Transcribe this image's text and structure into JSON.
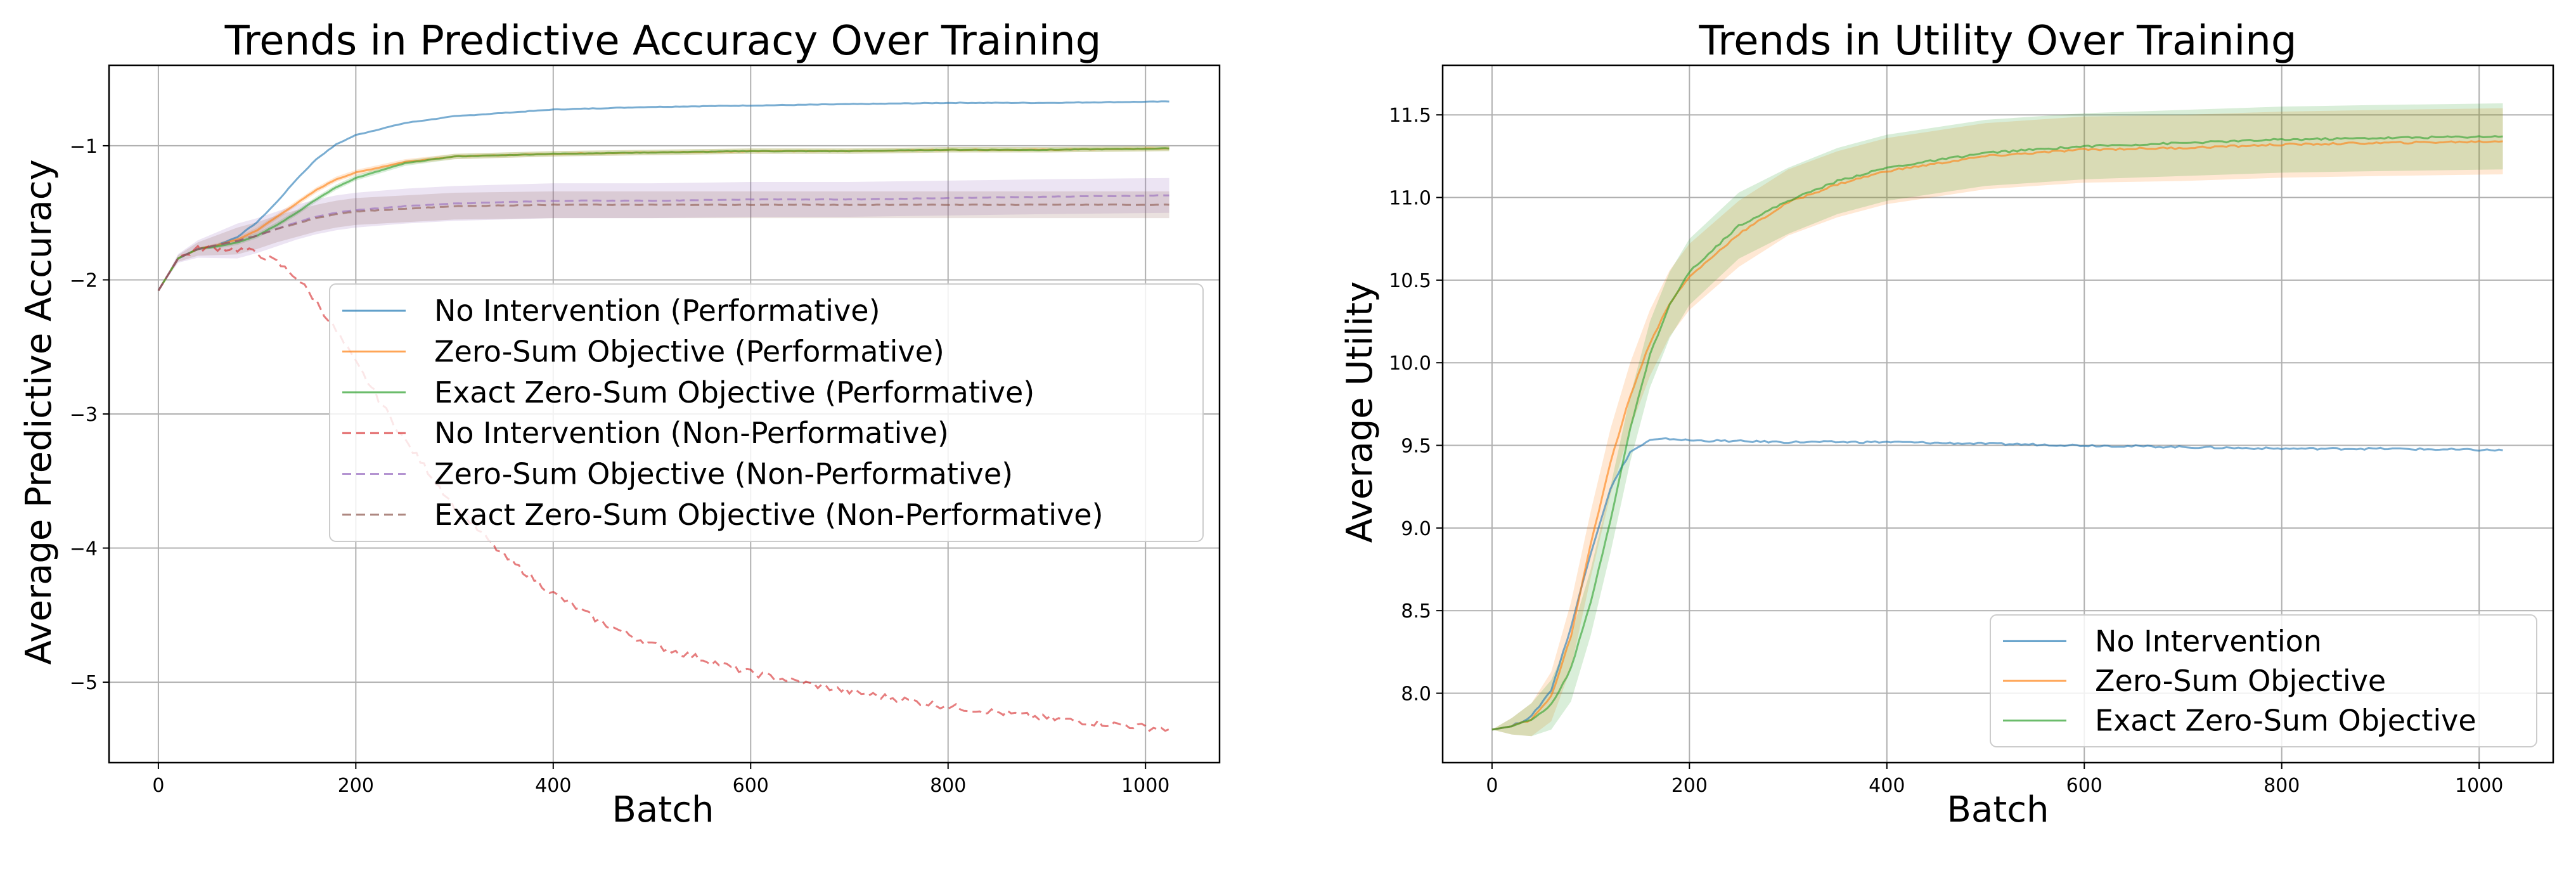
{
  "chart_data": [
    {
      "type": "line",
      "title": "Trends in Predictive Accuracy Over Training",
      "xlabel": "Batch",
      "ylabel": "Average Predictive Accuracy",
      "xlim": [
        -50,
        1075
      ],
      "ylim": [
        -5.6,
        -0.4
      ],
      "xticks": [
        0,
        200,
        400,
        600,
        800,
        1000
      ],
      "yticks": [
        -5,
        -4,
        -3,
        -2,
        -1
      ],
      "ytick_labels": [
        "−5",
        "−4",
        "−3",
        "−2",
        "−1"
      ],
      "grid": true,
      "legend_position": "center-right",
      "series": [
        {
          "name": "No Intervention (Performative)",
          "color": "#1f77b4",
          "style": "solid",
          "x": [
            0,
            20,
            40,
            60,
            80,
            100,
            120,
            140,
            160,
            180,
            200,
            250,
            300,
            400,
            500,
            600,
            700,
            800,
            900,
            1024
          ],
          "y": [
            -2.08,
            -1.84,
            -1.77,
            -1.74,
            -1.68,
            -1.57,
            -1.42,
            -1.25,
            -1.1,
            -0.99,
            -0.92,
            -0.83,
            -0.78,
            -0.73,
            -0.71,
            -0.7,
            -0.69,
            -0.68,
            -0.68,
            -0.67
          ],
          "band": null
        },
        {
          "name": "Zero-Sum Objective (Performative)",
          "color": "#ff7f0e",
          "style": "solid",
          "x": [
            0,
            20,
            40,
            60,
            80,
            100,
            120,
            140,
            160,
            180,
            200,
            250,
            300,
            400,
            500,
            600,
            700,
            800,
            900,
            1024
          ],
          "y": [
            -2.08,
            -1.84,
            -1.77,
            -1.74,
            -1.7,
            -1.63,
            -1.53,
            -1.43,
            -1.33,
            -1.25,
            -1.2,
            -1.12,
            -1.08,
            -1.06,
            -1.05,
            -1.04,
            -1.04,
            -1.03,
            -1.03,
            -1.02
          ],
          "band": 0.02
        },
        {
          "name": "Exact Zero-Sum Objective (Performative)",
          "color": "#2ca02c",
          "style": "solid",
          "x": [
            0,
            20,
            40,
            60,
            80,
            100,
            120,
            140,
            160,
            180,
            200,
            250,
            300,
            400,
            500,
            600,
            700,
            800,
            900,
            1024
          ],
          "y": [
            -2.08,
            -1.84,
            -1.77,
            -1.75,
            -1.72,
            -1.67,
            -1.59,
            -1.5,
            -1.4,
            -1.31,
            -1.24,
            -1.13,
            -1.08,
            -1.06,
            -1.05,
            -1.04,
            -1.04,
            -1.03,
            -1.03,
            -1.02
          ],
          "band": 0.02
        },
        {
          "name": "No Intervention (Non-Performative)",
          "color": "#d62728",
          "style": "dashed",
          "x": [
            0,
            20,
            40,
            60,
            80,
            100,
            120,
            140,
            160,
            180,
            200,
            250,
            300,
            350,
            400,
            450,
            500,
            600,
            700,
            800,
            900,
            1024
          ],
          "y": [
            -2.08,
            -1.84,
            -1.77,
            -1.76,
            -1.77,
            -1.8,
            -1.87,
            -1.98,
            -2.16,
            -2.38,
            -2.62,
            -3.2,
            -3.69,
            -4.06,
            -4.34,
            -4.56,
            -4.72,
            -4.93,
            -5.07,
            -5.18,
            -5.27,
            -5.35
          ],
          "band": null
        },
        {
          "name": "Zero-Sum Objective (Non-Performative)",
          "color": "#9467bd",
          "style": "dashed",
          "x": [
            0,
            20,
            40,
            60,
            80,
            100,
            120,
            140,
            160,
            180,
            200,
            250,
            300,
            400,
            500,
            600,
            700,
            800,
            900,
            1024
          ],
          "y": [
            -2.08,
            -1.84,
            -1.77,
            -1.74,
            -1.71,
            -1.67,
            -1.62,
            -1.57,
            -1.53,
            -1.5,
            -1.48,
            -1.45,
            -1.43,
            -1.41,
            -1.41,
            -1.4,
            -1.4,
            -1.39,
            -1.38,
            -1.37
          ],
          "band": 0.13
        },
        {
          "name": "Exact Zero-Sum Objective (Non-Performative)",
          "color": "#8c564b",
          "style": "dashed",
          "x": [
            0,
            20,
            40,
            60,
            80,
            100,
            120,
            140,
            160,
            180,
            200,
            250,
            300,
            400,
            500,
            600,
            700,
            800,
            900,
            1024
          ],
          "y": [
            -2.08,
            -1.84,
            -1.77,
            -1.74,
            -1.71,
            -1.67,
            -1.62,
            -1.58,
            -1.54,
            -1.51,
            -1.49,
            -1.47,
            -1.45,
            -1.44,
            -1.44,
            -1.44,
            -1.44,
            -1.44,
            -1.44,
            -1.44
          ],
          "band": 0.1
        }
      ]
    },
    {
      "type": "line",
      "title": "Trends in Utility Over Training",
      "xlabel": "Batch",
      "ylabel": "Average Utility",
      "xlim": [
        -50,
        1075
      ],
      "ylim": [
        7.58,
        11.8
      ],
      "xticks": [
        0,
        200,
        400,
        600,
        800,
        1000
      ],
      "yticks": [
        8.0,
        8.5,
        9.0,
        9.5,
        10.0,
        10.5,
        11.0,
        11.5
      ],
      "ytick_labels": [
        "8.0",
        "8.5",
        "9.0",
        "9.5",
        "10.0",
        "10.5",
        "11.0",
        "11.5"
      ],
      "grid": true,
      "legend_position": "lower-right",
      "series": [
        {
          "name": "No Intervention",
          "color": "#1f77b4",
          "style": "solid",
          "x": [
            0,
            20,
            40,
            60,
            80,
            100,
            120,
            140,
            160,
            180,
            200,
            300,
            400,
            500,
            600,
            700,
            800,
            900,
            1024
          ],
          "y": [
            7.78,
            7.8,
            7.86,
            8.02,
            8.4,
            8.85,
            9.24,
            9.46,
            9.53,
            9.54,
            9.53,
            9.52,
            9.52,
            9.51,
            9.5,
            9.49,
            9.48,
            9.48,
            9.47
          ],
          "band": null
        },
        {
          "name": "Zero-Sum Objective",
          "color": "#ff7f0e",
          "style": "solid",
          "x": [
            0,
            20,
            40,
            60,
            80,
            100,
            120,
            140,
            160,
            180,
            200,
            250,
            300,
            350,
            400,
            500,
            600,
            700,
            800,
            900,
            1024
          ],
          "y": [
            7.78,
            7.8,
            7.84,
            7.98,
            8.35,
            8.9,
            9.4,
            9.8,
            10.12,
            10.36,
            10.52,
            10.78,
            10.97,
            11.08,
            11.16,
            11.25,
            11.29,
            11.3,
            11.32,
            11.33,
            11.34
          ],
          "band": 0.2
        },
        {
          "name": "Exact Zero-Sum Objective",
          "color": "#2ca02c",
          "style": "solid",
          "x": [
            0,
            20,
            40,
            60,
            80,
            100,
            120,
            140,
            160,
            180,
            200,
            250,
            300,
            350,
            400,
            500,
            600,
            700,
            800,
            900,
            1024
          ],
          "y": [
            7.78,
            7.8,
            7.84,
            7.93,
            8.15,
            8.55,
            9.05,
            9.6,
            10.05,
            10.35,
            10.55,
            10.83,
            10.98,
            11.1,
            11.18,
            11.27,
            11.31,
            11.33,
            11.35,
            11.36,
            11.37
          ],
          "band": 0.2
        }
      ]
    }
  ]
}
